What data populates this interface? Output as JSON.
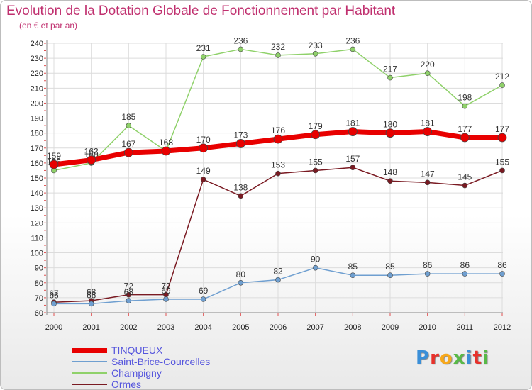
{
  "title": "Evolution de la Dotation Globale de Fonctionnement par Habitant",
  "subtitle": "(en € et par an)",
  "logo": {
    "text": "Proxiti",
    "colors": [
      "#3a8fd8",
      "#e8312b",
      "#f7a81b",
      "#58b947",
      "#3a8fd8",
      "#e8312b",
      "#58b947"
    ]
  },
  "chart_data": {
    "type": "line",
    "x": [
      "2000",
      "2001",
      "2002",
      "2003",
      "2004",
      "2005",
      "2006",
      "2007",
      "2008",
      "2009",
      "2010",
      "2011",
      "2012"
    ],
    "ylim": [
      60,
      240
    ],
    "yticks": [
      60,
      70,
      80,
      90,
      100,
      110,
      120,
      130,
      140,
      150,
      160,
      170,
      180,
      190,
      200,
      210,
      220,
      230,
      240
    ],
    "grid": true,
    "legend_position": "bottom-left",
    "series": [
      {
        "name": "TINQUEUX",
        "color": "#e80000",
        "width": 7,
        "values": [
          159,
          162,
          167,
          168,
          170,
          173,
          176,
          179,
          181,
          180,
          181,
          177,
          177
        ]
      },
      {
        "name": "Saint-Brice-Courcelles",
        "color": "#6f9fd0",
        "width": 1.5,
        "values": [
          66,
          66,
          68,
          69,
          69,
          80,
          82,
          90,
          85,
          85,
          86,
          86,
          86
        ]
      },
      {
        "name": "Champigny",
        "color": "#8fd16a",
        "width": 1.5,
        "values": [
          155,
          160,
          185,
          168,
          231,
          236,
          232,
          233,
          236,
          217,
          220,
          198,
          212
        ]
      },
      {
        "name": "Ormes",
        "color": "#7a1a22",
        "width": 1.5,
        "values": [
          67,
          68,
          72,
          72,
          149,
          138,
          153,
          155,
          157,
          148,
          147,
          145,
          155
        ]
      }
    ]
  }
}
